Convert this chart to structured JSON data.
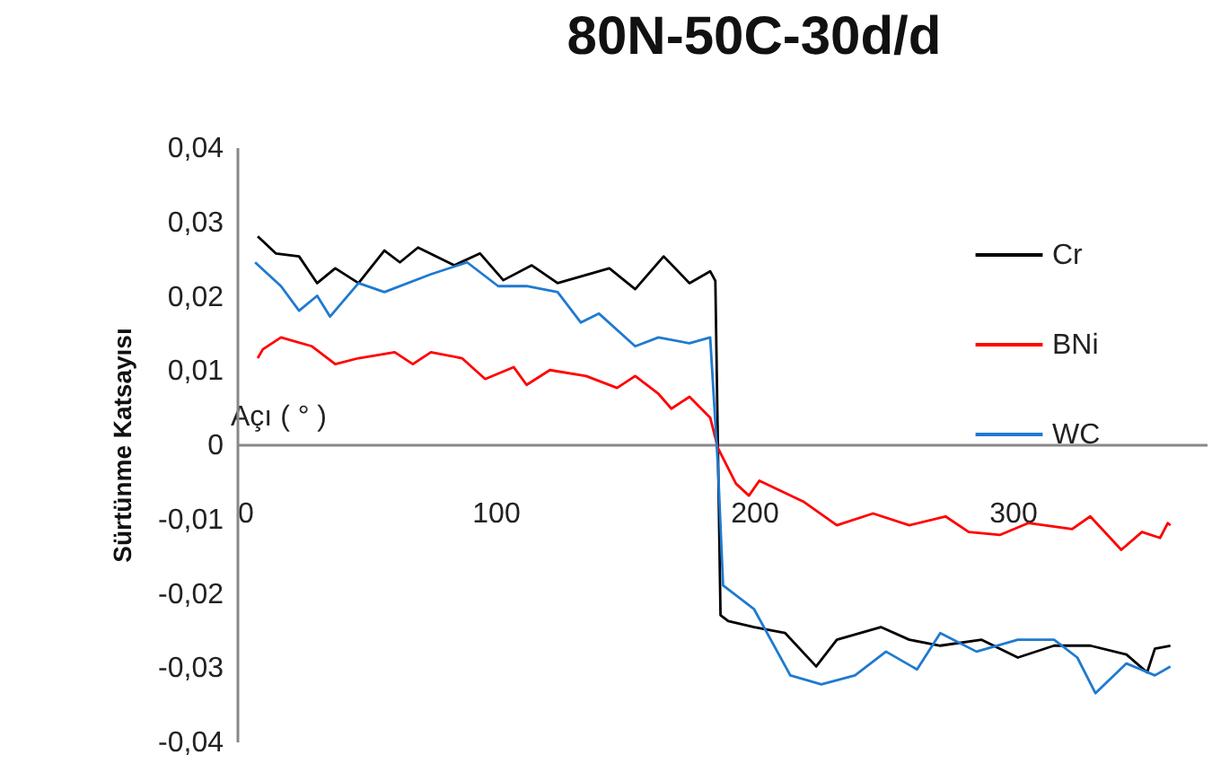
{
  "chart_data": {
    "type": "line",
    "title": "80N-50C-30d/d",
    "xlabel": "Açı ( ° )",
    "ylabel": "Sürtünme Katsayısı",
    "xlim": [
      0,
      375
    ],
    "xticks": [
      0,
      100,
      200,
      300
    ],
    "ylim": [
      -0.04,
      0.04
    ],
    "yticks": [
      {
        "value": -0.04,
        "label": "-0,04"
      },
      {
        "value": -0.03,
        "label": "-0,03"
      },
      {
        "value": -0.02,
        "label": "-0,02"
      },
      {
        "value": -0.01,
        "label": "-0,01"
      },
      {
        "value": 0,
        "label": "0"
      },
      {
        "value": 0.01,
        "label": "0,01"
      },
      {
        "value": 0.02,
        "label": "0,02"
      },
      {
        "value": 0.03,
        "label": "0,03"
      },
      {
        "value": 0.04,
        "label": "0,04"
      }
    ],
    "legend": "right",
    "series": [
      {
        "name": "Cr",
        "color": "#000000",
        "x": [
          8,
          15,
          24,
          31,
          38,
          47,
          57,
          63,
          70,
          84,
          94,
          103,
          114,
          124,
          144,
          154,
          165,
          175,
          183,
          185,
          187,
          190,
          200,
          212,
          224,
          232,
          249,
          260,
          272,
          288,
          302,
          316,
          330,
          344,
          352,
          355,
          361
        ],
        "values": [
          0.028,
          0.0257,
          0.0253,
          0.0217,
          0.0237,
          0.0217,
          0.0261,
          0.0245,
          0.0265,
          0.0241,
          0.0257,
          0.0221,
          0.0241,
          0.0217,
          0.0237,
          0.0209,
          0.0253,
          0.0217,
          0.0233,
          0.022,
          -0.023,
          -0.0238,
          -0.0246,
          -0.0254,
          -0.0299,
          -0.0263,
          -0.0246,
          -0.0263,
          -0.0271,
          -0.0263,
          -0.0287,
          -0.0271,
          -0.0271,
          -0.0283,
          -0.0307,
          -0.0275,
          -0.0271
        ]
      },
      {
        "name": "BNi",
        "color": "#ff0000",
        "x": [
          8,
          10,
          17,
          29,
          38,
          47,
          61,
          68,
          75,
          87,
          96,
          107,
          112,
          121,
          135,
          147,
          154,
          163,
          168,
          175,
          183,
          186,
          193,
          198,
          202,
          219,
          232,
          246,
          260,
          274,
          283,
          295,
          306,
          323,
          330,
          342,
          350,
          357,
          360,
          361
        ],
        "values": [
          0.0116,
          0.0128,
          0.0144,
          0.0132,
          0.0108,
          0.0116,
          0.0124,
          0.0108,
          0.0124,
          0.0116,
          0.0088,
          0.0104,
          0.008,
          0.01,
          0.0092,
          0.0076,
          0.0092,
          0.0068,
          0.0048,
          0.0064,
          0.0036,
          -0.0005,
          -0.0053,
          -0.0069,
          -0.0049,
          -0.0077,
          -0.0109,
          -0.0093,
          -0.0109,
          -0.0097,
          -0.0118,
          -0.0122,
          -0.0106,
          -0.0114,
          -0.0097,
          -0.0142,
          -0.0118,
          -0.0126,
          -0.0106,
          -0.0109
        ]
      },
      {
        "name": "WC",
        "color": "#1f7ad0",
        "x": [
          7,
          17,
          24,
          31,
          36,
          47,
          57,
          75,
          89,
          101,
          112,
          124,
          133,
          140,
          154,
          163,
          175,
          183,
          186,
          188,
          200,
          214,
          226,
          239,
          251,
          263,
          272,
          286,
          302,
          316,
          325,
          332,
          344,
          355,
          361
        ],
        "values": [
          0.0245,
          0.0213,
          0.018,
          0.02,
          0.0172,
          0.0217,
          0.0205,
          0.0229,
          0.0245,
          0.0213,
          0.0213,
          0.0205,
          0.0164,
          0.0176,
          0.0132,
          0.0144,
          0.0136,
          0.0144,
          -0.0029,
          -0.019,
          -0.0222,
          -0.0311,
          -0.0323,
          -0.0311,
          -0.0279,
          -0.0303,
          -0.0254,
          -0.0279,
          -0.0263,
          -0.0263,
          -0.0287,
          -0.0335,
          -0.0295,
          -0.0311,
          -0.0299
        ]
      }
    ]
  }
}
